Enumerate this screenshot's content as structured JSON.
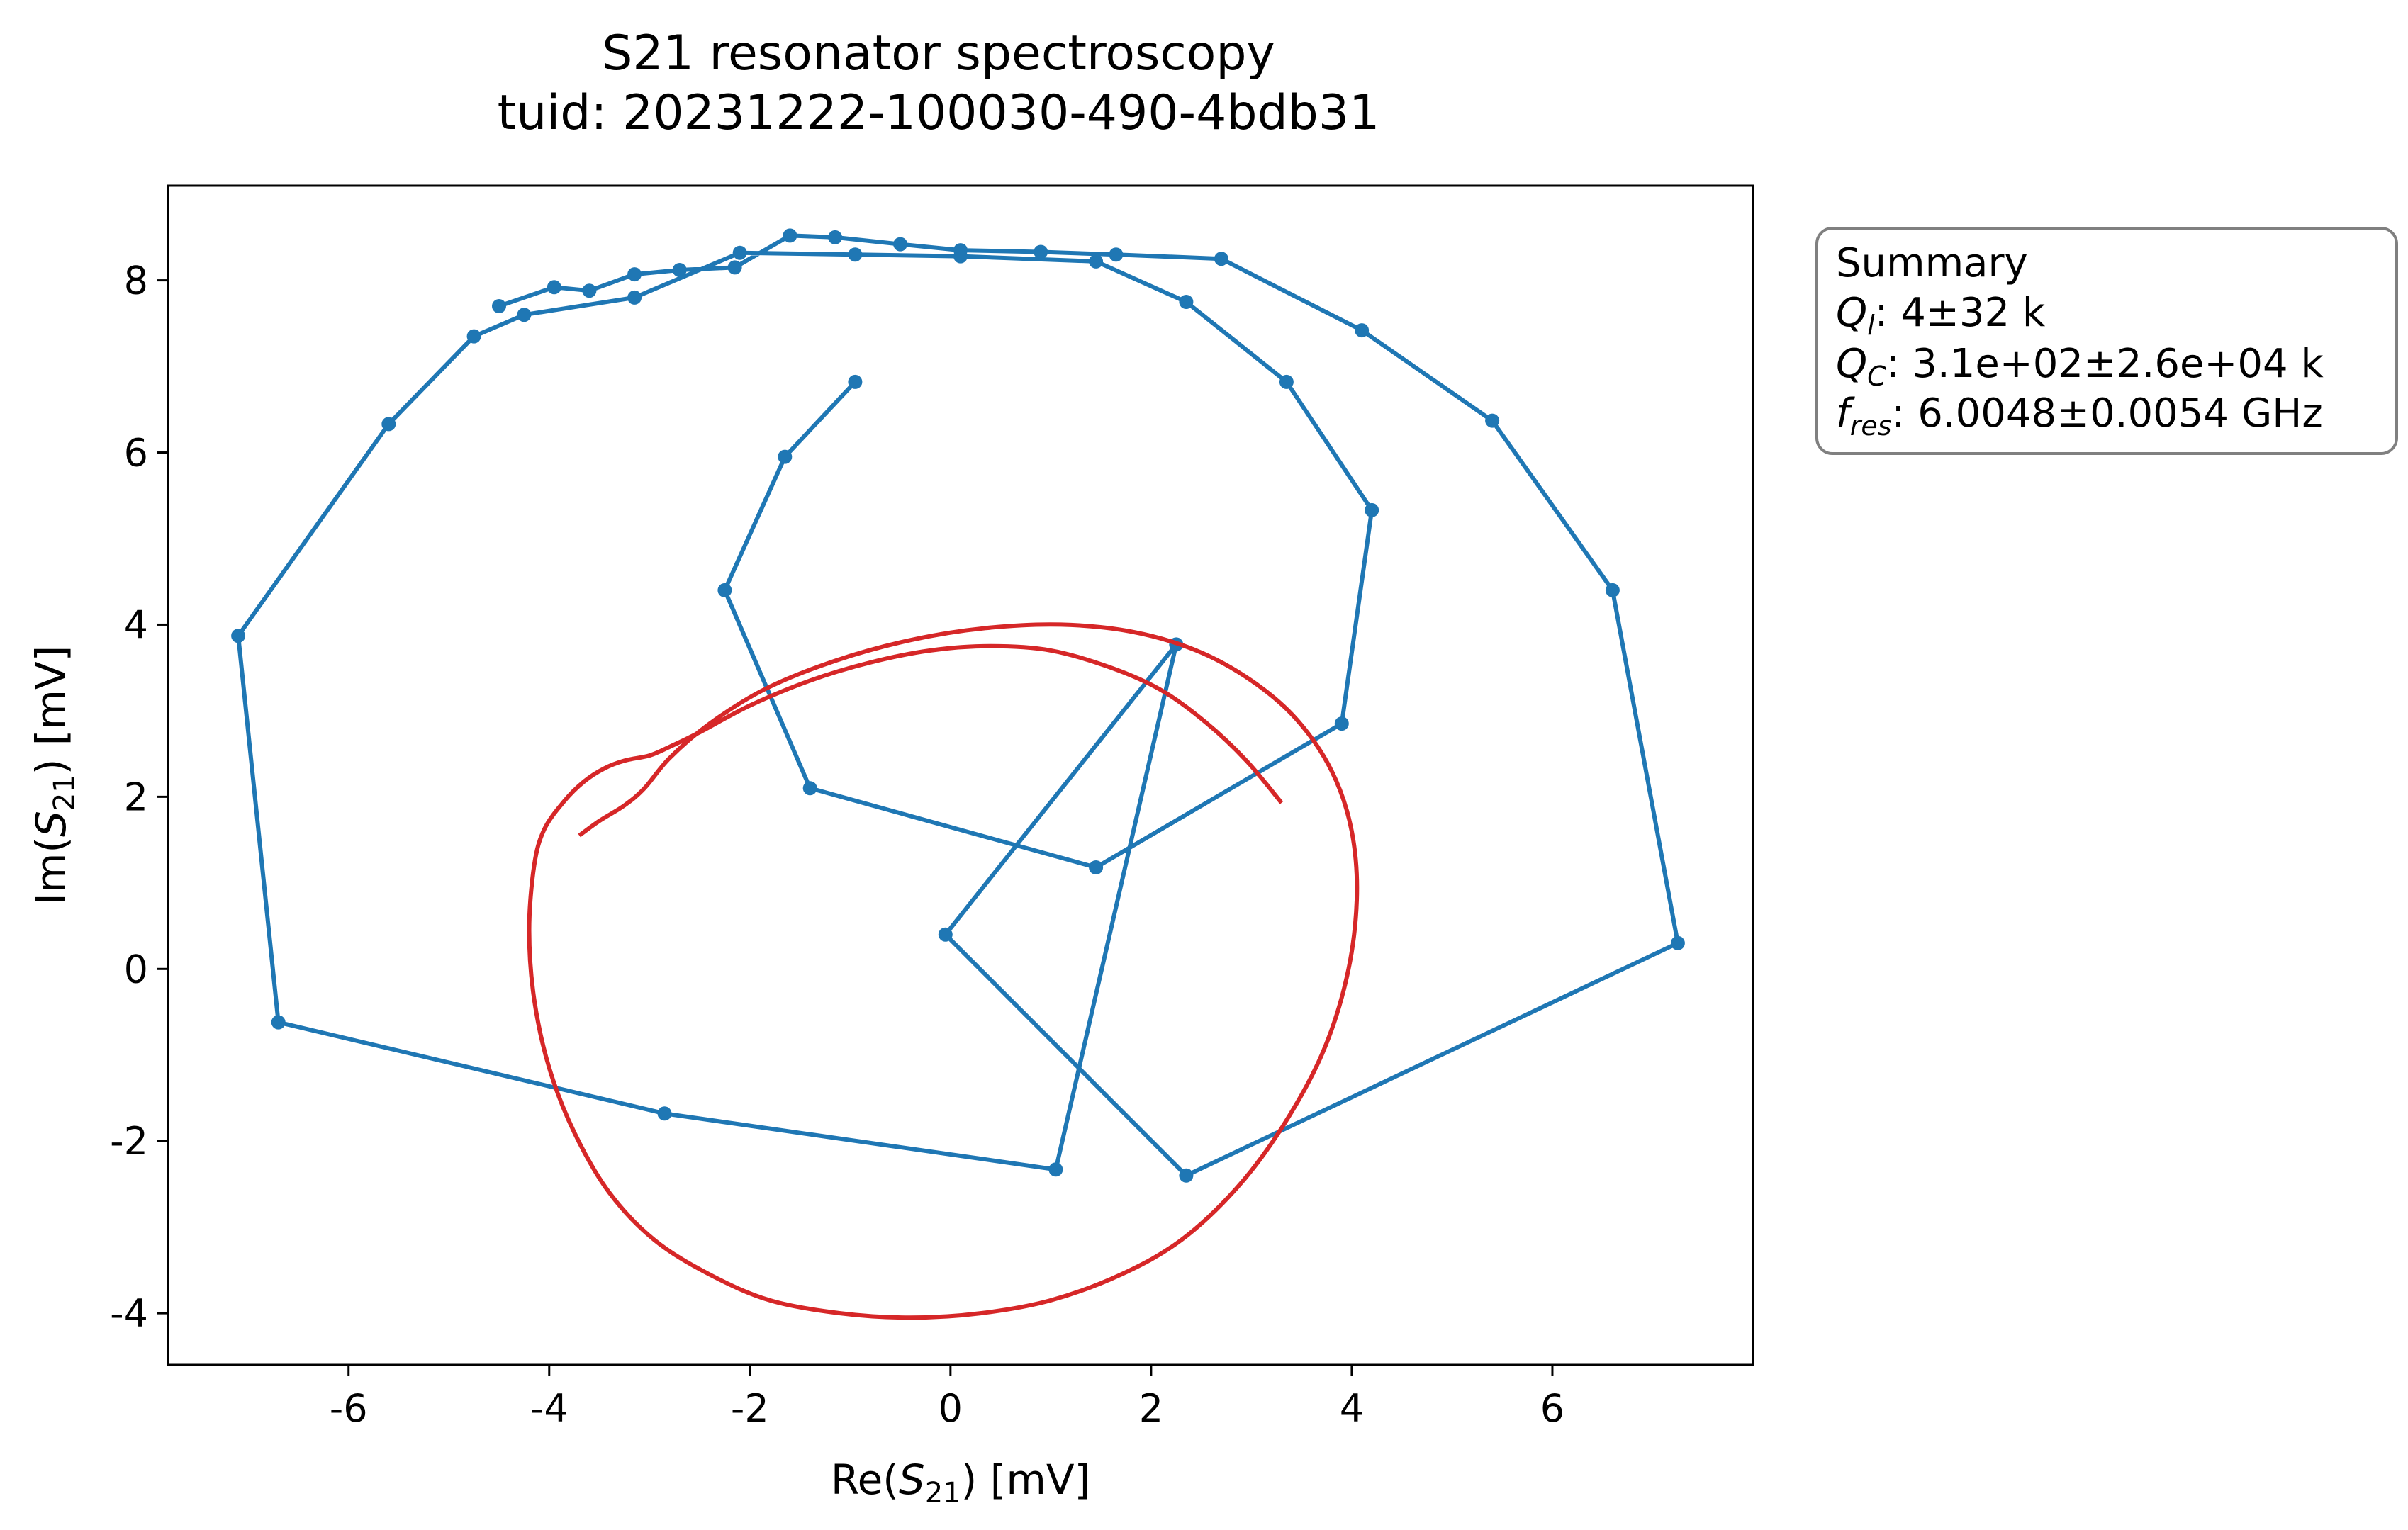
{
  "chart_data": {
    "type": "line",
    "title": "S21 resonator spectroscopy",
    "subtitle": "tuid: 20231222-100030-490-4bdb31",
    "xlabel": {
      "base": "Re(",
      "italic": "S",
      "sub": "21",
      "tail": ") [mV]"
    },
    "ylabel": {
      "base": "Im(",
      "italic": "S",
      "sub": "21",
      "tail": ") [mV]"
    },
    "xlim": [
      -7.8,
      8.0
    ],
    "ylim": [
      -4.6,
      9.1
    ],
    "xticks": [
      -6,
      -4,
      -2,
      0,
      2,
      4,
      6
    ],
    "yticks": [
      -4,
      -2,
      0,
      2,
      4,
      6,
      8
    ],
    "grid": false,
    "colors": {
      "data": "#1f77b4",
      "fit": "#d62728"
    },
    "series": [
      {
        "kind": "data",
        "x": [
          -0.95,
          -1.65,
          -2.25,
          -1.4,
          1.45,
          3.9,
          4.2,
          3.35,
          2.35,
          1.45,
          0.1,
          -0.95,
          -2.1,
          -3.15,
          -4.25,
          -4.75,
          -5.6,
          -7.1,
          -6.7,
          -2.85,
          1.05,
          2.25,
          -0.05,
          2.35,
          7.25,
          6.6,
          5.4,
          4.1,
          2.7,
          1.65,
          0.9,
          0.1,
          -0.5,
          -1.15,
          -1.6,
          -2.15,
          -2.7,
          -3.15,
          -3.6,
          -3.95,
          -4.5
        ],
        "y": [
          6.82,
          5.95,
          4.4,
          2.1,
          1.18,
          2.85,
          5.33,
          6.82,
          7.75,
          8.22,
          8.28,
          8.3,
          8.32,
          7.8,
          7.6,
          7.35,
          6.33,
          3.87,
          -0.62,
          -1.68,
          -2.33,
          3.77,
          0.4,
          -2.4,
          0.3,
          4.4,
          6.37,
          7.42,
          8.25,
          8.3,
          8.33,
          8.35,
          8.42,
          8.5,
          8.52,
          8.15,
          8.12,
          8.07,
          7.88,
          7.92,
          7.7
        ]
      }
    ],
    "fit_curve": {
      "kind": "fit",
      "x": [
        3.3,
        2.95,
        2.55,
        2.1,
        1.6,
        1.0,
        0.4,
        -0.2,
        -0.8,
        -1.4,
        -2.0,
        -2.5,
        -2.8,
        -3.0,
        -3.25,
        -3.45,
        -3.65,
        -3.85,
        -4.05,
        -4.15,
        -4.2,
        -4.15,
        -4.0,
        -3.75,
        -3.4,
        -2.95,
        -2.4,
        -1.8,
        -1.1,
        -0.4,
        0.3,
        1.0,
        1.7,
        2.3,
        2.85,
        3.3,
        3.7,
        3.95,
        4.05,
        4.0,
        3.8,
        3.45,
        3.0,
        2.45,
        1.8,
        1.1,
        0.35,
        -0.4,
        -1.15,
        -1.85,
        -2.4,
        -2.8,
        -3.05,
        -3.25,
        -3.5,
        -3.7
      ],
      "y": [
        1.93,
        2.42,
        2.86,
        3.24,
        3.5,
        3.7,
        3.75,
        3.7,
        3.56,
        3.35,
        3.06,
        2.75,
        2.58,
        2.48,
        2.42,
        2.33,
        2.18,
        1.95,
        1.62,
        1.2,
        0.45,
        -0.35,
        -1.15,
        -1.9,
        -2.6,
        -3.15,
        -3.55,
        -3.85,
        -4.0,
        -4.05,
        -4.0,
        -3.85,
        -3.55,
        -3.15,
        -2.55,
        -1.85,
        -1.0,
        -0.1,
        0.8,
        1.6,
        2.3,
        2.9,
        3.35,
        3.7,
        3.92,
        4.0,
        3.96,
        3.82,
        3.58,
        3.25,
        2.85,
        2.45,
        2.1,
        1.9,
        1.72,
        1.55
      ]
    },
    "legend": {
      "placement": "outside-right-top",
      "lines": [
        {
          "plain": "Summary"
        },
        {
          "italic": "Q",
          "sub": "l",
          "rest": ": 4±32 k"
        },
        {
          "italic": "Q",
          "sub": "C",
          "rest": ": 3.1e+02±2.6e+04 k"
        },
        {
          "italic": "f",
          "sub": "res",
          "rest": ": 6.0048±0.0054 GHz"
        }
      ]
    }
  }
}
